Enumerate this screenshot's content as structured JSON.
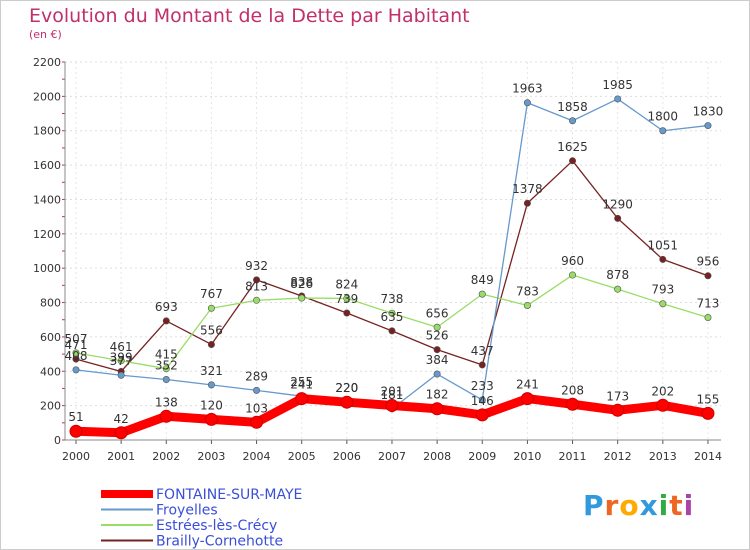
{
  "title": "Evolution du Montant de la Dette par Habitant",
  "subtitle": "(en €)",
  "logo": "Proxiti",
  "chart_data": {
    "type": "line",
    "title": "Evolution du Montant de la Dette par Habitant",
    "subtitle": "(en €)",
    "xlabel": "",
    "ylabel": "",
    "x": [
      2000,
      2001,
      2002,
      2003,
      2004,
      2005,
      2006,
      2007,
      2008,
      2009,
      2010,
      2011,
      2012,
      2013,
      2014
    ],
    "ylim": [
      0,
      2200
    ],
    "yticks": [
      0,
      200,
      400,
      600,
      800,
      1000,
      1200,
      1400,
      1600,
      1800,
      2000,
      2200
    ],
    "grid": "horizontal dashed",
    "legend_position": "bottom-left",
    "series": [
      {
        "name": "FONTAINE-SUR-MAYE",
        "color": "#ff0000",
        "values": [
          51,
          42,
          138,
          120,
          103,
          241,
          220,
          201,
          182,
          146,
          241,
          208,
          173,
          202,
          155
        ],
        "labels": [
          "51",
          "42",
          "138",
          "120",
          "103",
          "241",
          "220",
          "201",
          "182",
          "146",
          "241",
          "208",
          "173",
          "202",
          "155"
        ]
      },
      {
        "name": "Froyelles",
        "color": "#6699cc",
        "values": [
          408,
          377,
          352,
          321,
          289,
          255,
          220,
          181,
          384,
          233,
          1963,
          1858,
          1985,
          1800,
          1830
        ],
        "labels": [
          "408",
          "377",
          "352",
          "321",
          "289",
          "255",
          "220",
          "181",
          "384",
          "233",
          "1963",
          "1858",
          "1985",
          "1800",
          "1830"
        ]
      },
      {
        "name": "Estrées-lès-Crécy",
        "color": "#99dd66",
        "values": [
          507,
          461,
          415,
          767,
          813,
          826,
          824,
          738,
          656,
          849,
          783,
          960,
          878,
          793,
          713
        ],
        "labels": [
          "507",
          "461",
          "415",
          "767",
          "813",
          "826",
          "824",
          "738",
          "656",
          "849",
          "783",
          "960",
          "878",
          "793",
          "713"
        ]
      },
      {
        "name": "Brailly-Cornehotte",
        "color": "#772222",
        "values": [
          471,
          399,
          693,
          556,
          932,
          838,
          739,
          635,
          526,
          437,
          1378,
          1625,
          1290,
          1051,
          956
        ],
        "labels": [
          "471",
          "399",
          "693",
          "556",
          "932",
          "838",
          "739",
          "635",
          "526",
          "437",
          "1378",
          "1625",
          "1290",
          "1051",
          "956"
        ]
      }
    ]
  }
}
